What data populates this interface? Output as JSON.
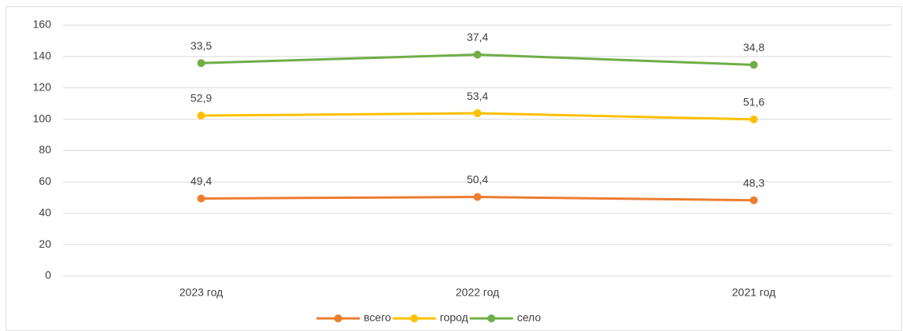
{
  "chart_data": {
    "type": "line",
    "stacked": true,
    "categories": [
      "2023 год",
      "2022 год",
      "2021 год"
    ],
    "series": [
      {
        "name": "всего",
        "color": "#ED7D31",
        "values": [
          49.4,
          50.4,
          48.3
        ],
        "value_labels": [
          "49,4",
          "50,4",
          "48,3"
        ]
      },
      {
        "name": "город",
        "color": "#FFC000",
        "values": [
          52.9,
          53.4,
          51.6
        ],
        "value_labels": [
          "52,9",
          "53,4",
          "51,6"
        ]
      },
      {
        "name": "село",
        "color": "#70AD47",
        "values": [
          33.5,
          37.4,
          34.8
        ],
        "value_labels": [
          "33,5",
          "37,4",
          "34,8"
        ]
      }
    ],
    "ylim": [
      0,
      160
    ],
    "yticks": [
      0,
      20,
      40,
      60,
      80,
      100,
      120,
      140,
      160
    ],
    "grid": true,
    "legend": "bottom"
  }
}
